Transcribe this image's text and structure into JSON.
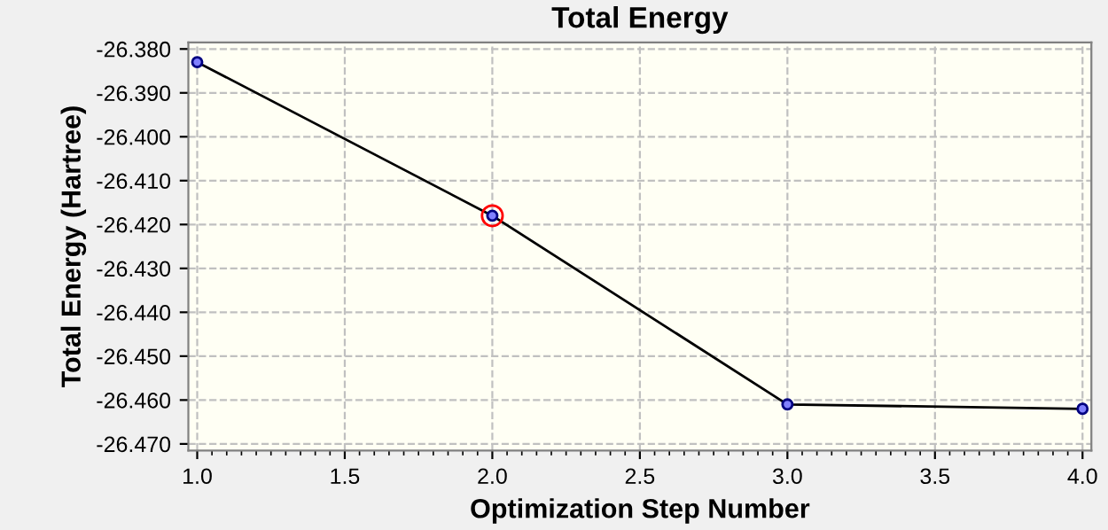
{
  "chart_data": {
    "type": "line",
    "title": "Total Energy",
    "xlabel": "Optimization Step Number",
    "ylabel": "Total Energy (Hartree)",
    "x": [
      1,
      2,
      3,
      4
    ],
    "series": [
      {
        "color": "#000080",
        "values": [
          -26.383,
          -26.418,
          -26.461,
          -26.462
        ]
      },
      {
        "type": "scatter",
        "x": [
          2
        ],
        "color": "#ff0000",
        "values": [
          -26.418
        ]
      }
    ],
    "xlim": [
      0.97,
      4.03
    ],
    "ylim": [
      -26.4715,
      -26.3785
    ],
    "xticks": [
      {
        "value": 1,
        "label": "1.0"
      },
      {
        "value": 1.5,
        "label": "1.5"
      },
      {
        "value": 2,
        "label": "2.0"
      },
      {
        "value": 2.5,
        "label": "2.5"
      },
      {
        "value": 3,
        "label": "3.0"
      },
      {
        "value": 3.5,
        "label": "3.5"
      },
      {
        "value": 4,
        "label": "4.0"
      }
    ],
    "yticks": [
      {
        "value": -26.38,
        "label": "-26.380"
      },
      {
        "value": -26.39,
        "label": "-26.390"
      },
      {
        "value": -26.4,
        "label": "-26.400"
      },
      {
        "value": -26.41,
        "label": "-26.410"
      },
      {
        "value": -26.42,
        "label": "-26.420"
      },
      {
        "value": -26.43,
        "label": "-26.430"
      },
      {
        "value": -26.44,
        "label": "-26.440"
      },
      {
        "value": -26.45,
        "label": "-26.450"
      },
      {
        "value": -26.46,
        "label": "-26.460"
      },
      {
        "value": -26.47,
        "label": "-26.470"
      }
    ],
    "grid": true,
    "marker": "circle",
    "line_style": "solid"
  }
}
